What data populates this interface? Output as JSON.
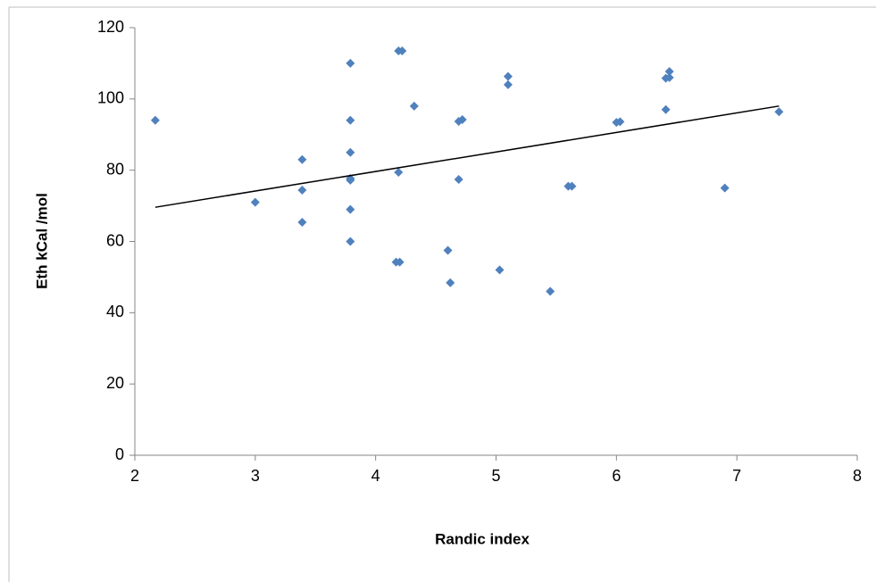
{
  "chart_data": {
    "type": "scatter",
    "x_label": "Randic index",
    "y_label": "Eth kCal /mol",
    "x": [
      2.17,
      3.0,
      3.39,
      3.39,
      3.39,
      3.79,
      3.79,
      3.79,
      3.79,
      3.79,
      3.79,
      3.79,
      4.19,
      4.22,
      4.19,
      4.17,
      4.2,
      4.32,
      4.6,
      4.62,
      4.69,
      4.69,
      4.72,
      5.03,
      5.1,
      5.1,
      5.45,
      5.6,
      5.63,
      6.0,
      6.03,
      6.41,
      6.44,
      6.44,
      6.41,
      6.9,
      7.35
    ],
    "y": [
      94,
      71,
      83,
      74.4,
      65.4,
      110,
      94,
      85,
      77.7,
      77.2,
      69,
      60,
      113.5,
      113.5,
      79.4,
      54.2,
      54.2,
      98,
      57.5,
      48.4,
      77.4,
      93.7,
      94.2,
      52,
      106.3,
      104,
      46,
      75.5,
      75.5,
      93.4,
      93.6,
      105.8,
      106,
      107.7,
      97,
      75,
      96.4
    ],
    "color": "#4f81bd",
    "trendline": {
      "x": [
        2.17,
        7.35
      ],
      "y": [
        69.6,
        98
      ],
      "color": "#000000"
    },
    "xlim": [
      2,
      8
    ],
    "xticks": [
      2,
      3,
      4,
      5,
      6,
      7,
      8
    ],
    "ylim": [
      0,
      120
    ],
    "yticks": [
      0,
      20,
      40,
      60,
      80,
      100,
      120
    ],
    "grid": false
  }
}
